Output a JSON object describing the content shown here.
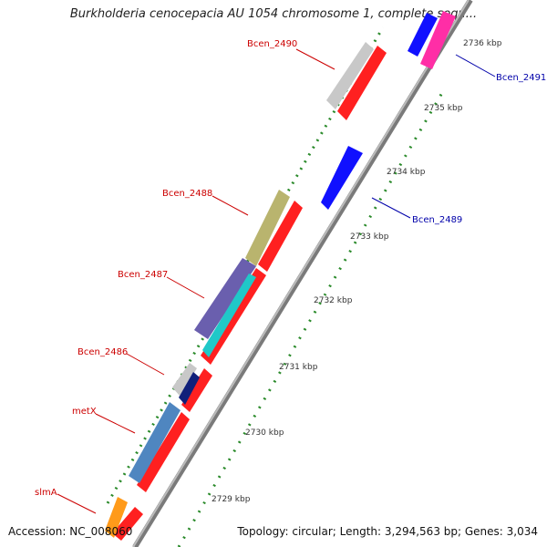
{
  "title": "Burkholderia cenocepacia AU 1054 chromosome 1, complete sequ...",
  "accession": "Accession: NC_008060",
  "summary": "Topology: circular; Length: 3,294,563 bp; Genes: 3,034",
  "tick_labels": [
    "2736 kbp",
    "2735 kbp",
    "2734 kbp",
    "2733 kbp",
    "2732 kbp",
    "2731 kbp",
    "2730 kbp",
    "2729 kbp"
  ],
  "gene_labels": [
    {
      "name": "Bcen_2490",
      "strand": "reverse"
    },
    {
      "name": "Bcen_2491",
      "strand": "forward"
    },
    {
      "name": "Bcen_2488",
      "strand": "reverse"
    },
    {
      "name": "Bcen_2489",
      "strand": "forward"
    },
    {
      "name": "Bcen_2487",
      "strand": "reverse"
    },
    {
      "name": "Bcen_2486",
      "strand": "reverse"
    },
    {
      "name": "metX",
      "strand": "reverse"
    },
    {
      "name": "slmA",
      "strand": "reverse"
    }
  ],
  "colors": {
    "reverse_label": "#cc0000",
    "forward_label": "#0000aa",
    "cds": "#ff0000",
    "backbone": "#888888",
    "gc_dots": "#2a8a2a"
  }
}
